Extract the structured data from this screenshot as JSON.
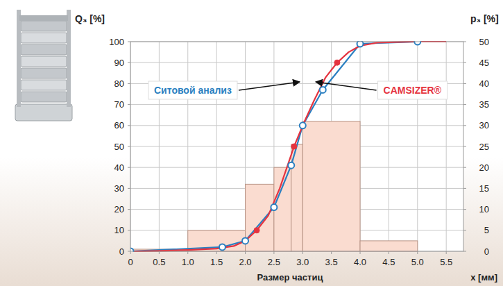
{
  "chart_data": {
    "type": "line",
    "x_label": "Размер частиц",
    "x_unit_label": "x [мм]",
    "y_label": "Q₃ [%]",
    "y2_label": "p₃ [%]",
    "xlim": [
      0,
      5.8
    ],
    "xticks": [
      0,
      0.5,
      {
        "value": 1,
        "label": "1.0"
      },
      1.5,
      {
        "value": 2,
        "label": "2.0"
      },
      2.5,
      {
        "value": 3,
        "label": "3.0"
      },
      3.5,
      {
        "value": 4,
        "label": "4.0"
      },
      4.5,
      {
        "value": 5,
        "label": "5.0"
      },
      5.5
    ],
    "ylim": [
      0,
      100
    ],
    "yticks": [
      0,
      10,
      20,
      30,
      40,
      50,
      60,
      70,
      80,
      90,
      100
    ],
    "y2lim": [
      0,
      50
    ],
    "y2ticks": [
      0,
      5,
      10,
      15,
      20,
      25,
      30,
      35,
      40,
      45,
      50
    ],
    "grid": true,
    "series": [
      {
        "type": "histogram",
        "axis": "y2",
        "color": "#fadcd0",
        "bins": [
          0,
          1,
          2,
          2.5,
          2.8,
          3,
          4,
          5
        ],
        "values": [
          0.5,
          5,
          16,
          20,
          25.5,
          31,
          2.5
        ]
      },
      {
        "name": "Ситовой анализ",
        "type": "line",
        "color": "#2a7fc1",
        "marker": "circle",
        "x": [
          0,
          1.6,
          2.0,
          2.5,
          2.8,
          3.0,
          3.35,
          4.0,
          5.0
        ],
        "values": [
          0,
          2,
          5,
          21,
          41,
          60,
          77,
          99,
          100
        ]
      },
      {
        "name": "CAMSIZER®",
        "type": "line",
        "color": "#e5333f",
        "marker": "none",
        "x": [
          0,
          0.5,
          1.0,
          1.5,
          1.8,
          2.0,
          2.2,
          2.4,
          2.6,
          2.85,
          3.0,
          3.2,
          3.4,
          3.6,
          3.8,
          4.0,
          4.3,
          4.6,
          5.0,
          5.5
        ],
        "values": [
          0,
          0.2,
          0.6,
          1.3,
          2.5,
          5,
          10,
          17,
          30,
          50,
          60,
          72,
          83,
          90,
          95,
          98,
          99.5,
          99.8,
          100,
          100
        ]
      },
      {
        "type": "scatter",
        "color": "#e5333f",
        "marker": "circle",
        "x": [
          2.2,
          2.85,
          3.6
        ],
        "values": [
          10,
          50,
          90
        ]
      }
    ]
  }
}
